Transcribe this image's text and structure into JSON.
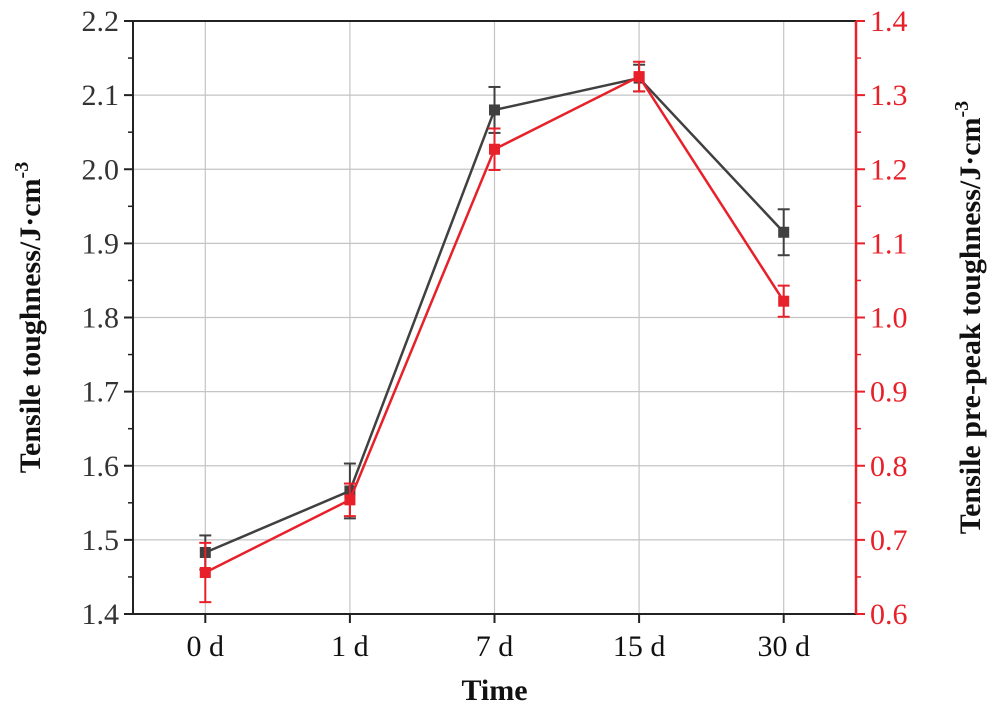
{
  "chart_data": {
    "type": "line",
    "categories": [
      "0 d",
      "1 d",
      "7 d",
      "15 d",
      "30 d"
    ],
    "xlabel": "Time",
    "ylabel_left": "Tensile toughness/J·cm",
    "ylabel_left_sup": "-3",
    "ylabel_right": "Tensile pre-peak toughness/J·cm",
    "ylabel_right_sup": "-3",
    "ylim_left": [
      1.4,
      2.2
    ],
    "ylim_right": [
      0.6,
      1.4
    ],
    "yticks_left": [
      "1.4",
      "1.5",
      "1.6",
      "1.7",
      "1.8",
      "1.9",
      "2.0",
      "2.1",
      "2.2"
    ],
    "yticks_right": [
      "0.6",
      "0.7",
      "0.8",
      "0.9",
      "1.0",
      "1.1",
      "1.2",
      "1.3",
      "1.4"
    ],
    "grid": true,
    "series": [
      {
        "axis": "left",
        "color": "#404040",
        "marker": "square",
        "values": [
          1.483,
          1.566,
          2.08,
          2.123,
          1.915
        ],
        "errors": [
          0.023,
          0.037,
          0.031,
          0.018,
          0.031
        ]
      },
      {
        "axis": "right",
        "color": "#e8202a",
        "marker": "square",
        "values": [
          0.656,
          0.754,
          1.227,
          1.325,
          1.022
        ],
        "errors": [
          0.04,
          0.022,
          0.028,
          0.02,
          0.021
        ]
      }
    ]
  }
}
